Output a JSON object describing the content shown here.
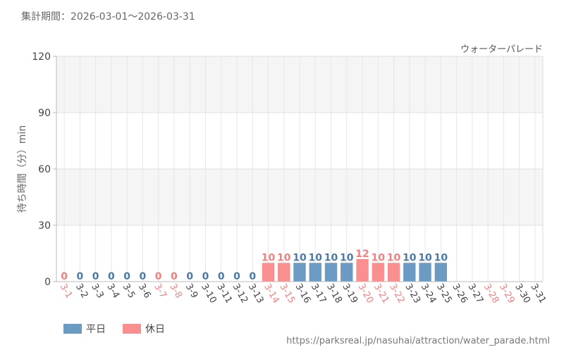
{
  "header": {
    "period": "集計期間：2026-03-01～2026-03-31"
  },
  "source": "https://parksreal.jp/nasuhai/attraction/water_parade.html",
  "chart_data": {
    "type": "bar",
    "series_label": "ウォーターパレード",
    "ylabel": "待ち時間（分）min",
    "ylim": [
      0,
      120
    ],
    "yticks": [
      0,
      30,
      60,
      90,
      120
    ],
    "grid": true,
    "legend_position": "bottom-left",
    "legend": [
      {
        "name": "平日",
        "color": "#6b9bc3"
      },
      {
        "name": "休日",
        "color": "#fa8f8f"
      }
    ],
    "categories": [
      "3-1",
      "3-2",
      "3-3",
      "3-4",
      "3-5",
      "3-6",
      "3-7",
      "3-8",
      "3-9",
      "3-10",
      "3-11",
      "3-12",
      "3-13",
      "3-14",
      "3-15",
      "3-16",
      "3-17",
      "3-18",
      "3-19",
      "3-20",
      "3-21",
      "3-22",
      "3-23",
      "3-24",
      "3-25",
      "3-26",
      "3-27",
      "3-28",
      "3-29",
      "3-30",
      "3-31"
    ],
    "day_type": [
      "holiday",
      "weekday",
      "weekday",
      "weekday",
      "weekday",
      "weekday",
      "holiday",
      "holiday",
      "weekday",
      "weekday",
      "weekday",
      "weekday",
      "weekday",
      "holiday",
      "holiday",
      "weekday",
      "weekday",
      "weekday",
      "weekday",
      "holiday",
      "holiday",
      "holiday",
      "weekday",
      "weekday",
      "weekday",
      "weekday",
      "weekday",
      "holiday",
      "holiday",
      "weekday",
      "weekday"
    ],
    "values": [
      0,
      0,
      0,
      0,
      0,
      0,
      0,
      0,
      0,
      0,
      0,
      0,
      0,
      10,
      10,
      10,
      10,
      10,
      10,
      12,
      10,
      10,
      10,
      10,
      10,
      null,
      null,
      null,
      null,
      null,
      null
    ],
    "colors": {
      "weekday": "#6b9bc3",
      "holiday": "#fa8f8f",
      "weekday_text": "#4a7aa5",
      "holiday_text": "#f08080",
      "axis_text": "#444444"
    }
  }
}
